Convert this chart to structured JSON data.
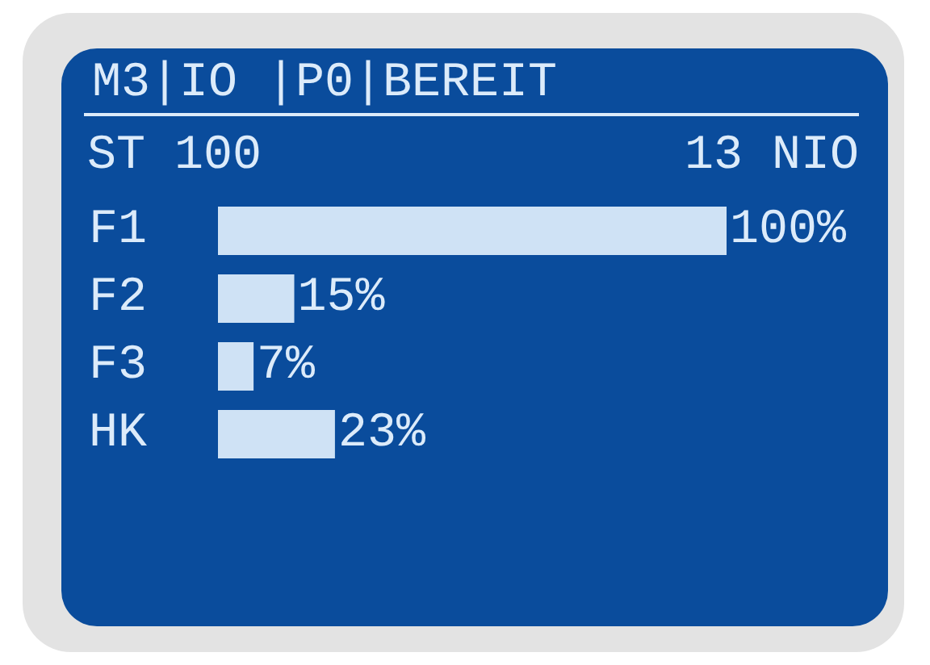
{
  "chart_data": {
    "type": "bar",
    "orientation": "horizontal",
    "title": "M3|IO |P0|BEREIT",
    "annotations": [
      "ST 100",
      "13 NIO"
    ],
    "categories": [
      "F1",
      "F2",
      "F3",
      "HK"
    ],
    "values": [
      100,
      15,
      7,
      23
    ],
    "value_labels": [
      "100%",
      "15%",
      "7%",
      "23%"
    ],
    "color": "#cfe2f5"
  }
}
